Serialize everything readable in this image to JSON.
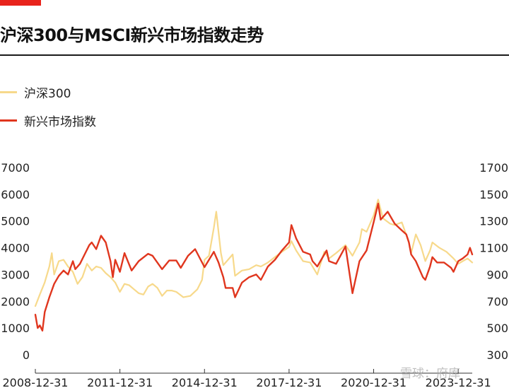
{
  "title": "沪深300与MSCI新兴市场指数走势",
  "colors": {
    "accent": "#e8231c",
    "hs300": "#f7d98b",
    "msci": "#e0361e"
  },
  "watermark": "雪球：府库",
  "chart_data": {
    "type": "line",
    "title": "沪深300与MSCI新兴市场指数走势",
    "x_ticks": [
      "2008-12-31",
      "2011-12-31",
      "2014-12-31",
      "2017-12-31",
      "2020-12-31",
      "2023-12-31"
    ],
    "x_range": [
      "2008-12-31",
      "2024-06-30"
    ],
    "y_left": {
      "ticks": [
        0,
        1000,
        2000,
        3000,
        4000,
        5000,
        6000,
        7000
      ],
      "range": [
        0,
        7000
      ]
    },
    "y_right": {
      "ticks": [
        300,
        500,
        700,
        900,
        1100,
        1300,
        1500,
        1700
      ],
      "range": [
        300,
        1700
      ]
    },
    "legend_position": "top-left",
    "grid": false,
    "series": [
      {
        "name": "沪深300",
        "axis": "left",
        "color": "#f7d98b",
        "points": [
          [
            "2008-12-31",
            1820
          ],
          [
            "2009-02-28",
            2250
          ],
          [
            "2009-04-30",
            2700
          ],
          [
            "2009-06-30",
            3300
          ],
          [
            "2009-07-31",
            3800
          ],
          [
            "2009-08-31",
            3000
          ],
          [
            "2009-10-31",
            3500
          ],
          [
            "2009-12-31",
            3550
          ],
          [
            "2010-02-28",
            3300
          ],
          [
            "2010-04-30",
            3100
          ],
          [
            "2010-06-30",
            2650
          ],
          [
            "2010-08-31",
            2900
          ],
          [
            "2010-10-31",
            3400
          ],
          [
            "2010-12-31",
            3150
          ],
          [
            "2011-02-28",
            3300
          ],
          [
            "2011-04-30",
            3250
          ],
          [
            "2011-06-30",
            3050
          ],
          [
            "2011-08-31",
            2900
          ],
          [
            "2011-10-31",
            2700
          ],
          [
            "2011-12-31",
            2350
          ],
          [
            "2012-02-29",
            2650
          ],
          [
            "2012-04-30",
            2600
          ],
          [
            "2012-06-30",
            2450
          ],
          [
            "2012-08-31",
            2300
          ],
          [
            "2012-10-31",
            2250
          ],
          [
            "2012-12-31",
            2550
          ],
          [
            "2013-02-28",
            2650
          ],
          [
            "2013-04-30",
            2500
          ],
          [
            "2013-06-30",
            2200
          ],
          [
            "2013-08-31",
            2400
          ],
          [
            "2013-10-31",
            2400
          ],
          [
            "2013-12-31",
            2350
          ],
          [
            "2014-03-31",
            2150
          ],
          [
            "2014-06-30",
            2200
          ],
          [
            "2014-09-30",
            2450
          ],
          [
            "2014-11-30",
            2800
          ],
          [
            "2014-12-31",
            3550
          ],
          [
            "2015-02-28",
            3700
          ],
          [
            "2015-04-30",
            4750
          ],
          [
            "2015-05-31",
            5350
          ],
          [
            "2015-07-31",
            3800
          ],
          [
            "2015-08-31",
            3350
          ],
          [
            "2015-10-31",
            3550
          ],
          [
            "2015-12-31",
            3750
          ],
          [
            "2016-01-31",
            2950
          ],
          [
            "2016-04-30",
            3150
          ],
          [
            "2016-07-31",
            3200
          ],
          [
            "2016-10-31",
            3350
          ],
          [
            "2016-12-31",
            3300
          ],
          [
            "2017-03-31",
            3450
          ],
          [
            "2017-06-30",
            3650
          ],
          [
            "2017-09-30",
            3850
          ],
          [
            "2017-12-31",
            4030
          ],
          [
            "2018-01-31",
            4250
          ],
          [
            "2018-03-31",
            3900
          ],
          [
            "2018-06-30",
            3500
          ],
          [
            "2018-09-30",
            3450
          ],
          [
            "2018-12-31",
            3000
          ],
          [
            "2019-03-31",
            3850
          ],
          [
            "2019-05-31",
            3600
          ],
          [
            "2019-08-31",
            3800
          ],
          [
            "2019-12-31",
            4100
          ],
          [
            "2020-03-31",
            3700
          ],
          [
            "2020-06-30",
            4200
          ],
          [
            "2020-07-31",
            4700
          ],
          [
            "2020-09-30",
            4600
          ],
          [
            "2020-12-31",
            5200
          ],
          [
            "2021-02-28",
            5800
          ],
          [
            "2021-04-30",
            5100
          ],
          [
            "2021-07-31",
            4900
          ],
          [
            "2021-09-30",
            4850
          ],
          [
            "2021-12-31",
            4950
          ],
          [
            "2022-03-31",
            4200
          ],
          [
            "2022-04-30",
            3800
          ],
          [
            "2022-06-30",
            4500
          ],
          [
            "2022-08-31",
            4100
          ],
          [
            "2022-10-31",
            3500
          ],
          [
            "2022-12-31",
            3900
          ],
          [
            "2023-01-31",
            4200
          ],
          [
            "2023-04-30",
            4000
          ],
          [
            "2023-07-31",
            3850
          ],
          [
            "2023-10-31",
            3600
          ],
          [
            "2023-12-31",
            3400
          ],
          [
            "2024-02-28",
            3500
          ],
          [
            "2024-04-30",
            3600
          ],
          [
            "2024-06-30",
            3450
          ]
        ]
      },
      {
        "name": "新兴市场指数",
        "axis": "right",
        "color": "#e0361e",
        "points": [
          [
            "2008-12-31",
            600
          ],
          [
            "2009-01-31",
            500
          ],
          [
            "2009-02-28",
            520
          ],
          [
            "2009-03-31",
            480
          ],
          [
            "2009-04-31",
            620
          ],
          [
            "2009-06-30",
            730
          ],
          [
            "2009-08-31",
            830
          ],
          [
            "2009-10-31",
            890
          ],
          [
            "2009-12-31",
            930
          ],
          [
            "2010-02-28",
            900
          ],
          [
            "2010-04-30",
            1000
          ],
          [
            "2010-05-31",
            940
          ],
          [
            "2010-07-31",
            980
          ],
          [
            "2010-09-30",
            1050
          ],
          [
            "2010-11-30",
            1120
          ],
          [
            "2010-12-31",
            1140
          ],
          [
            "2011-02-28",
            1090
          ],
          [
            "2011-04-30",
            1190
          ],
          [
            "2011-06-30",
            1140
          ],
          [
            "2011-08-31",
            1000
          ],
          [
            "2011-09-30",
            880
          ],
          [
            "2011-10-31",
            1010
          ],
          [
            "2011-12-31",
            920
          ],
          [
            "2012-02-29",
            1060
          ],
          [
            "2012-05-31",
            930
          ],
          [
            "2012-08-31",
            1000
          ],
          [
            "2012-12-31",
            1055
          ],
          [
            "2013-02-28",
            1040
          ],
          [
            "2013-06-30",
            940
          ],
          [
            "2013-09-30",
            1005
          ],
          [
            "2013-12-31",
            1005
          ],
          [
            "2014-02-28",
            950
          ],
          [
            "2014-05-31",
            1040
          ],
          [
            "2014-08-31",
            1090
          ],
          [
            "2014-12-31",
            955
          ],
          [
            "2015-04-30",
            1070
          ],
          [
            "2015-06-30",
            990
          ],
          [
            "2015-08-31",
            880
          ],
          [
            "2015-09-30",
            800
          ],
          [
            "2015-12-31",
            800
          ],
          [
            "2016-01-31",
            730
          ],
          [
            "2016-04-30",
            840
          ],
          [
            "2016-07-31",
            880
          ],
          [
            "2016-10-31",
            900
          ],
          [
            "2016-12-31",
            860
          ],
          [
            "2017-03-31",
            960
          ],
          [
            "2017-06-30",
            1010
          ],
          [
            "2017-09-30",
            1080
          ],
          [
            "2017-12-31",
            1140
          ],
          [
            "2018-01-31",
            1270
          ],
          [
            "2018-03-31",
            1170
          ],
          [
            "2018-06-30",
            1070
          ],
          [
            "2018-09-30",
            1050
          ],
          [
            "2018-10-31",
            1000
          ],
          [
            "2018-12-31",
            960
          ],
          [
            "2019-04-30",
            1080
          ],
          [
            "2019-05-31",
            1000
          ],
          [
            "2019-08-31",
            980
          ],
          [
            "2019-12-31",
            1110
          ],
          [
            "2020-03-31",
            760
          ],
          [
            "2020-06-30",
            1000
          ],
          [
            "2020-09-30",
            1080
          ],
          [
            "2020-12-31",
            1290
          ],
          [
            "2021-02-28",
            1430
          ],
          [
            "2021-03-31",
            1310
          ],
          [
            "2021-06-30",
            1370
          ],
          [
            "2021-09-30",
            1280
          ],
          [
            "2021-12-31",
            1230
          ],
          [
            "2022-02-28",
            1200
          ],
          [
            "2022-03-31",
            1140
          ],
          [
            "2022-04-30",
            1050
          ],
          [
            "2022-06-30",
            1000
          ],
          [
            "2022-09-30",
            880
          ],
          [
            "2022-10-31",
            860
          ],
          [
            "2022-12-31",
            960
          ],
          [
            "2023-01-31",
            1030
          ],
          [
            "2023-03-31",
            990
          ],
          [
            "2023-06-30",
            990
          ],
          [
            "2023-09-30",
            950
          ],
          [
            "2023-10-31",
            920
          ],
          [
            "2023-12-31",
            1000
          ],
          [
            "2024-02-28",
            1020
          ],
          [
            "2024-04-30",
            1050
          ],
          [
            "2024-05-31",
            1100
          ],
          [
            "2024-06-30",
            1050
          ]
        ]
      }
    ]
  }
}
